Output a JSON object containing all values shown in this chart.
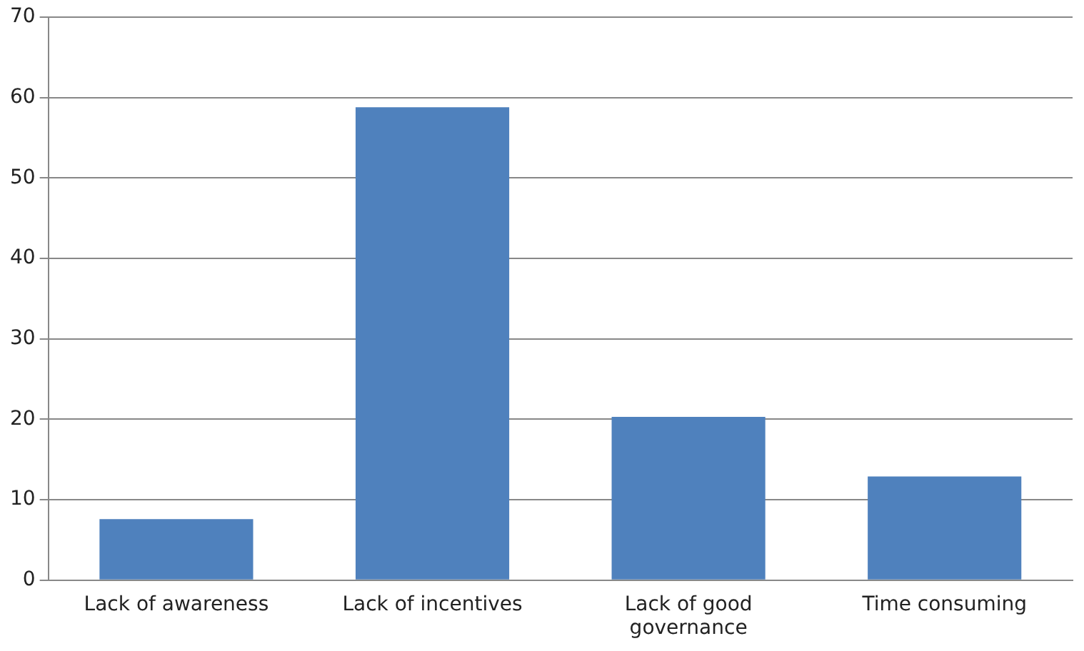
{
  "chart_data": {
    "type": "bar",
    "categories": [
      "Lack of awareness",
      "Lack of incentives",
      "Lack of good governance",
      "Time consuming"
    ],
    "values": [
      7.6,
      58.8,
      20.3,
      12.9
    ],
    "color": "#4f81bd",
    "ylim": [
      0,
      70
    ],
    "yticks": [
      0,
      10,
      20,
      30,
      40,
      50,
      60,
      70
    ],
    "grid": "y"
  }
}
